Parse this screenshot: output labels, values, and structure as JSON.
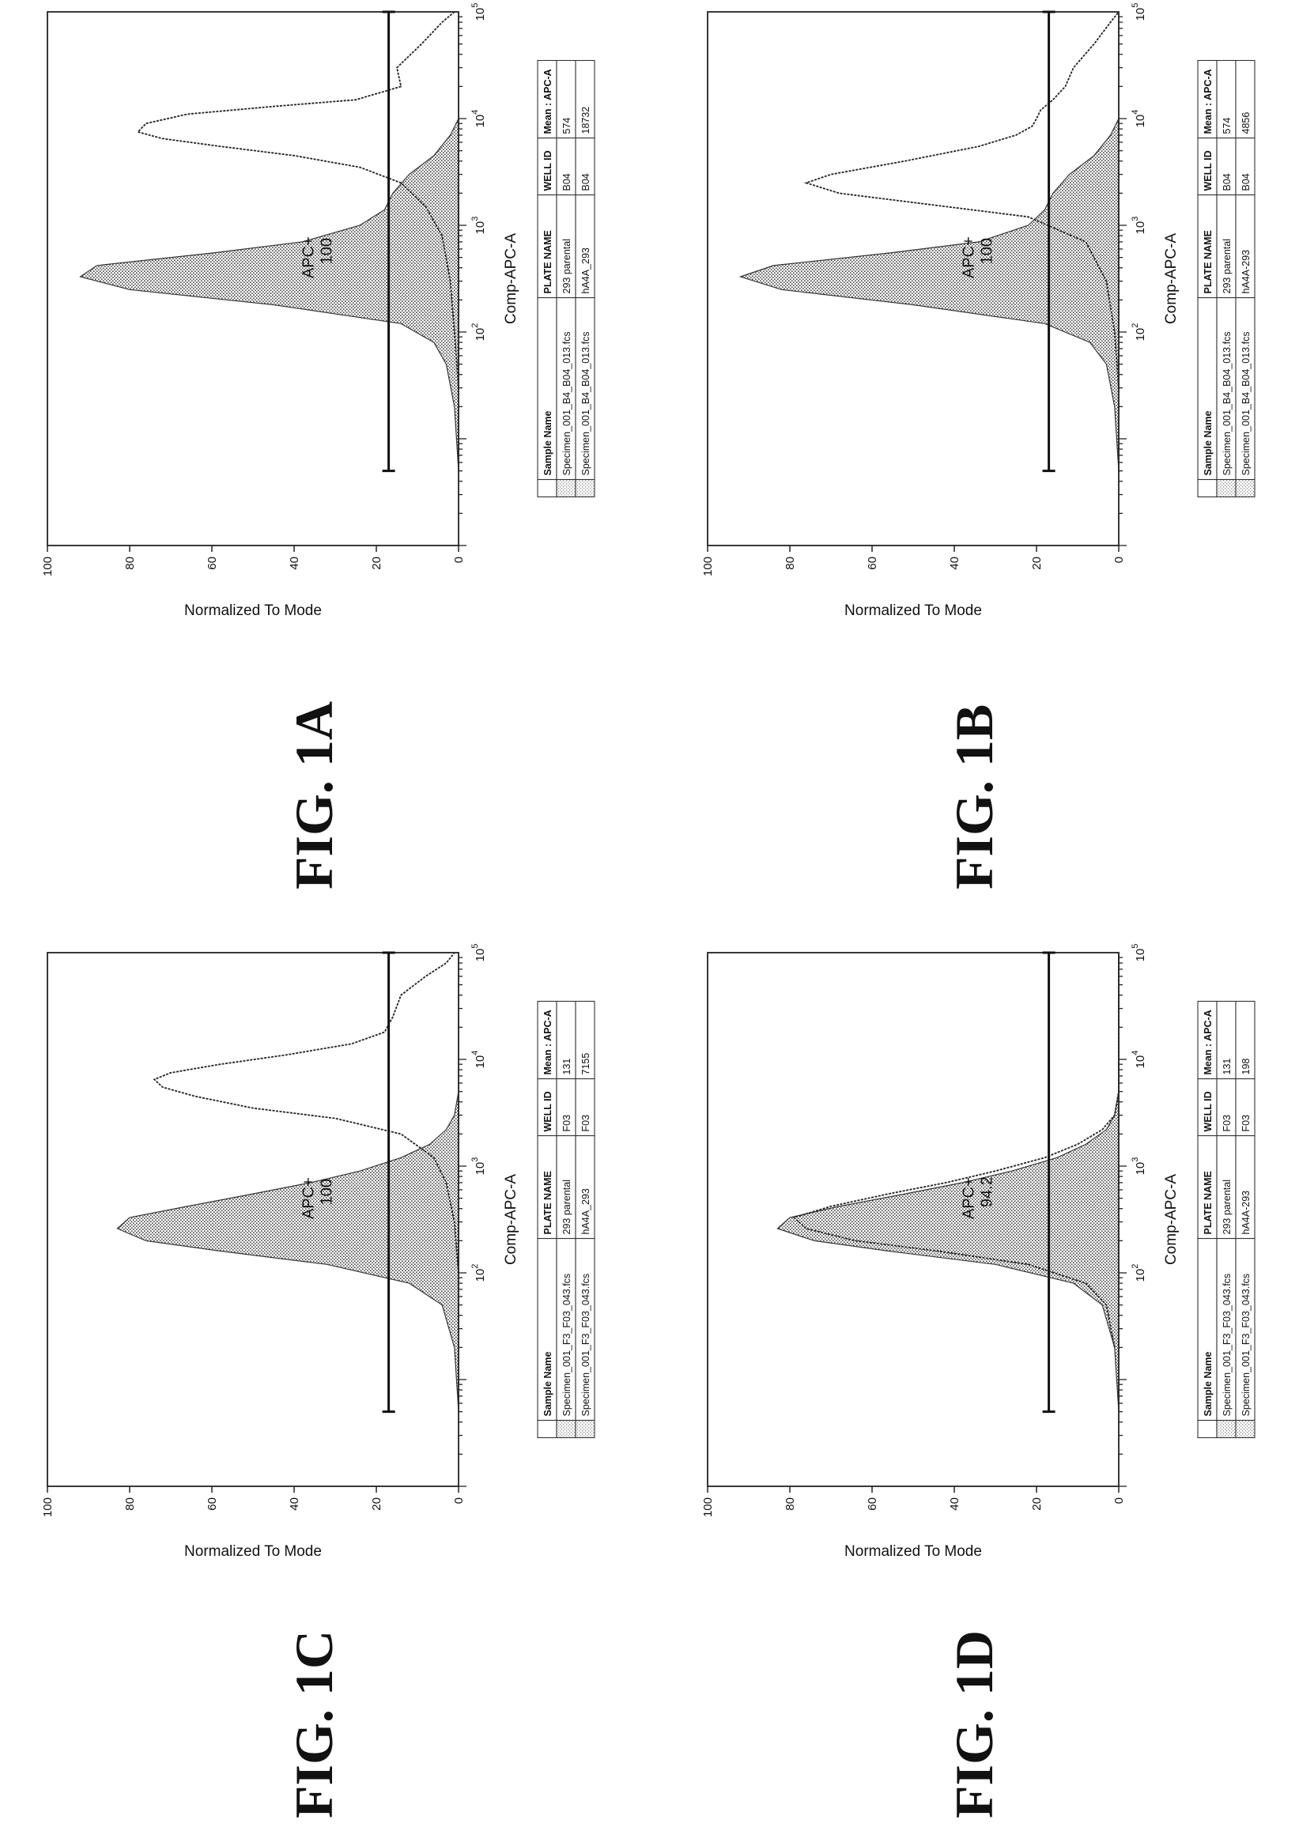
{
  "chart_data": [
    {
      "figure": "FIG. 1A",
      "type": "area",
      "xlabel": "Comp-APC-A",
      "ylabel": "Normalized To Mode",
      "xscale": "log",
      "xlim": [
        1,
        100000
      ],
      "ylim": [
        0,
        100
      ],
      "yticks": [
        "0",
        "20",
        "40",
        "60",
        "80",
        "100"
      ],
      "xticks": [
        {
          "base": "10",
          "exp": "2",
          "value": 100
        },
        {
          "base": "10",
          "exp": "3",
          "value": 1000
        },
        {
          "base": "10",
          "exp": "4",
          "value": 10000
        },
        {
          "base": "10",
          "exp": "5",
          "value": 100000
        }
      ],
      "gate": {
        "label": "APC+",
        "value": "100",
        "y": 17,
        "x_start": 5,
        "x_end": 100000
      },
      "series": [
        {
          "style": "filled",
          "x": [
            5,
            20,
            50,
            80,
            120,
            180,
            250,
            330,
            420,
            550,
            700,
            1000,
            1400,
            2000,
            3000,
            4500,
            7000,
            10000,
            15000,
            30000,
            100000
          ],
          "y": [
            0,
            1,
            3,
            6,
            14,
            45,
            80,
            92,
            88,
            60,
            38,
            24,
            18,
            16,
            12,
            6,
            2,
            0,
            0,
            0,
            0
          ]
        },
        {
          "style": "line",
          "x": [
            30,
            100,
            300,
            800,
            1500,
            2500,
            3500,
            4500,
            5500,
            6500,
            7500,
            9000,
            11000,
            13000,
            15000,
            20000,
            30000,
            50000,
            80000,
            100000
          ],
          "y": [
            0,
            1,
            2,
            4,
            8,
            14,
            24,
            40,
            58,
            72,
            78,
            76,
            66,
            45,
            25,
            14,
            15,
            9,
            4,
            1
          ]
        }
      ],
      "table": {
        "headers": [
          "",
          "Sample Name",
          "PLATE NAME",
          "WELL ID",
          "Mean : APC-A"
        ],
        "rows": [
          [
            "",
            "Specimen_001_B4_B04_013.fcs",
            "293 parental",
            "B04",
            "574"
          ],
          [
            "",
            "Specimen_001_B4_B04_013.fcs",
            "hA4A_293",
            "B04",
            "18732"
          ]
        ]
      }
    },
    {
      "figure": "FIG. 1B",
      "type": "area",
      "xlabel": "Comp-APC-A",
      "ylabel": "Normalized To Mode",
      "xscale": "log",
      "xlim": [
        1,
        100000
      ],
      "ylim": [
        0,
        100
      ],
      "yticks": [
        "0",
        "20",
        "40",
        "60",
        "80",
        "100"
      ],
      "xticks": [
        {
          "base": "10",
          "exp": "2",
          "value": 100
        },
        {
          "base": "10",
          "exp": "3",
          "value": 1000
        },
        {
          "base": "10",
          "exp": "4",
          "value": 10000
        },
        {
          "base": "10",
          "exp": "5",
          "value": 100000
        }
      ],
      "gate": {
        "label": "APC+",
        "value": "100",
        "y": 17,
        "x_start": 5,
        "x_end": 100000
      },
      "series": [
        {
          "style": "filled",
          "x": [
            5,
            20,
            50,
            80,
            120,
            180,
            250,
            330,
            420,
            550,
            700,
            1000,
            1400,
            2000,
            3000,
            4500,
            7000,
            10000,
            15000,
            30000,
            100000
          ],
          "y": [
            0,
            1,
            3,
            7,
            18,
            50,
            82,
            92,
            84,
            56,
            34,
            22,
            18,
            16,
            12,
            6,
            2,
            0,
            0,
            0,
            0
          ]
        },
        {
          "style": "line",
          "x": [
            30,
            100,
            300,
            700,
            1200,
            1600,
            2000,
            2500,
            3000,
            4000,
            5500,
            7000,
            8500,
            10000,
            12000,
            15000,
            20000,
            30000,
            50000,
            80000,
            100000
          ],
          "y": [
            0,
            1,
            3,
            8,
            22,
            48,
            68,
            76,
            70,
            52,
            34,
            25,
            21,
            20,
            19,
            16,
            13,
            11,
            6,
            2,
            0
          ]
        }
      ],
      "table": {
        "headers": [
          "",
          "Sample Name",
          "PLATE NAME",
          "WELL ID",
          "Mean : APC-A"
        ],
        "rows": [
          [
            "",
            "Specimen_001_B4_B04_013.fcs",
            "293 parental",
            "B04",
            "574"
          ],
          [
            "",
            "Specimen_001_B4_B04_013.fcs",
            "hA4A-293",
            "B04",
            "4856"
          ]
        ]
      }
    },
    {
      "figure": "FIG. 1C",
      "type": "area",
      "xlabel": "Comp-APC-A",
      "ylabel": "Normalized To Mode",
      "xscale": "log",
      "xlim": [
        1,
        100000
      ],
      "ylim": [
        0,
        100
      ],
      "yticks": [
        "0",
        "20",
        "40",
        "60",
        "80",
        "100"
      ],
      "xticks": [
        {
          "base": "10",
          "exp": "2",
          "value": 100
        },
        {
          "base": "10",
          "exp": "3",
          "value": 1000
        },
        {
          "base": "10",
          "exp": "4",
          "value": 10000
        },
        {
          "base": "10",
          "exp": "5",
          "value": 100000
        }
      ],
      "gate": {
        "label": "APC+",
        "value": "100",
        "y": 17,
        "x_start": 5,
        "x_end": 100000
      },
      "series": [
        {
          "style": "filled",
          "x": [
            5,
            20,
            50,
            80,
            120,
            160,
            200,
            260,
            330,
            420,
            550,
            700,
            900,
            1200,
            1600,
            2200,
            3000,
            5000,
            10000,
            100000
          ],
          "y": [
            0,
            1,
            4,
            12,
            32,
            58,
            76,
            83,
            80,
            66,
            50,
            36,
            24,
            14,
            7,
            3,
            1,
            0,
            0,
            0
          ]
        },
        {
          "style": "line",
          "x": [
            100,
            300,
            700,
            1200,
            2000,
            2800,
            3500,
            4500,
            5500,
            6500,
            7500,
            9000,
            11000,
            14000,
            18000,
            25000,
            40000,
            60000,
            80000,
            100000
          ],
          "y": [
            0,
            1,
            3,
            6,
            14,
            30,
            50,
            64,
            72,
            74,
            70,
            58,
            42,
            26,
            18,
            16,
            14,
            8,
            3,
            1
          ]
        }
      ],
      "table": {
        "headers": [
          "",
          "Sample Name",
          "PLATE NAME",
          "WELL ID",
          "Mean : APC-A"
        ],
        "rows": [
          [
            "",
            "Specimen_001_F3_F03_043.fcs",
            "293 parental",
            "F03",
            "131"
          ],
          [
            "",
            "Specimen_001_F3_F03_043.fcs",
            "hA4A_293",
            "F03",
            "7155"
          ]
        ]
      }
    },
    {
      "figure": "FIG. 1D",
      "type": "area",
      "xlabel": "Comp-APC-A",
      "ylabel": "Normalized To Mode",
      "xscale": "log",
      "xlim": [
        1,
        100000
      ],
      "ylim": [
        0,
        100
      ],
      "yticks": [
        "0",
        "20",
        "40",
        "60",
        "80",
        "100"
      ],
      "xticks": [
        {
          "base": "10",
          "exp": "2",
          "value": 100
        },
        {
          "base": "10",
          "exp": "3",
          "value": 1000
        },
        {
          "base": "10",
          "exp": "4",
          "value": 10000
        },
        {
          "base": "10",
          "exp": "5",
          "value": 100000
        }
      ],
      "gate": {
        "label": "APC+",
        "value": "94.2",
        "y": 17,
        "x_start": 5,
        "x_end": 100000
      },
      "series": [
        {
          "style": "filled",
          "x": [
            5,
            20,
            50,
            80,
            120,
            160,
            200,
            260,
            330,
            420,
            550,
            700,
            900,
            1200,
            1600,
            2200,
            3000,
            5000,
            10000,
            100000
          ],
          "y": [
            0,
            1,
            4,
            11,
            30,
            56,
            74,
            83,
            80,
            68,
            52,
            38,
            26,
            15,
            8,
            3,
            1,
            0,
            0,
            0
          ]
        },
        {
          "style": "line",
          "x": [
            20,
            50,
            80,
            120,
            160,
            200,
            260,
            330,
            420,
            550,
            700,
            900,
            1200,
            1600,
            2200,
            3000,
            5000,
            10000,
            100000
          ],
          "y": [
            1,
            3,
            8,
            22,
            44,
            64,
            76,
            79,
            70,
            56,
            42,
            30,
            18,
            10,
            4,
            1,
            0,
            0,
            0
          ]
        }
      ],
      "table": {
        "headers": [
          "",
          "Sample Name",
          "PLATE NAME",
          "WELL ID",
          "Mean : APC-A"
        ],
        "rows": [
          [
            "",
            "Specimen_001_F3_F03_043.fcs",
            "293 parental",
            "F03",
            "131"
          ],
          [
            "",
            "Specimen_001_F3_F03_043.fcs",
            "hA4A-293",
            "F03",
            "198"
          ]
        ]
      }
    }
  ]
}
